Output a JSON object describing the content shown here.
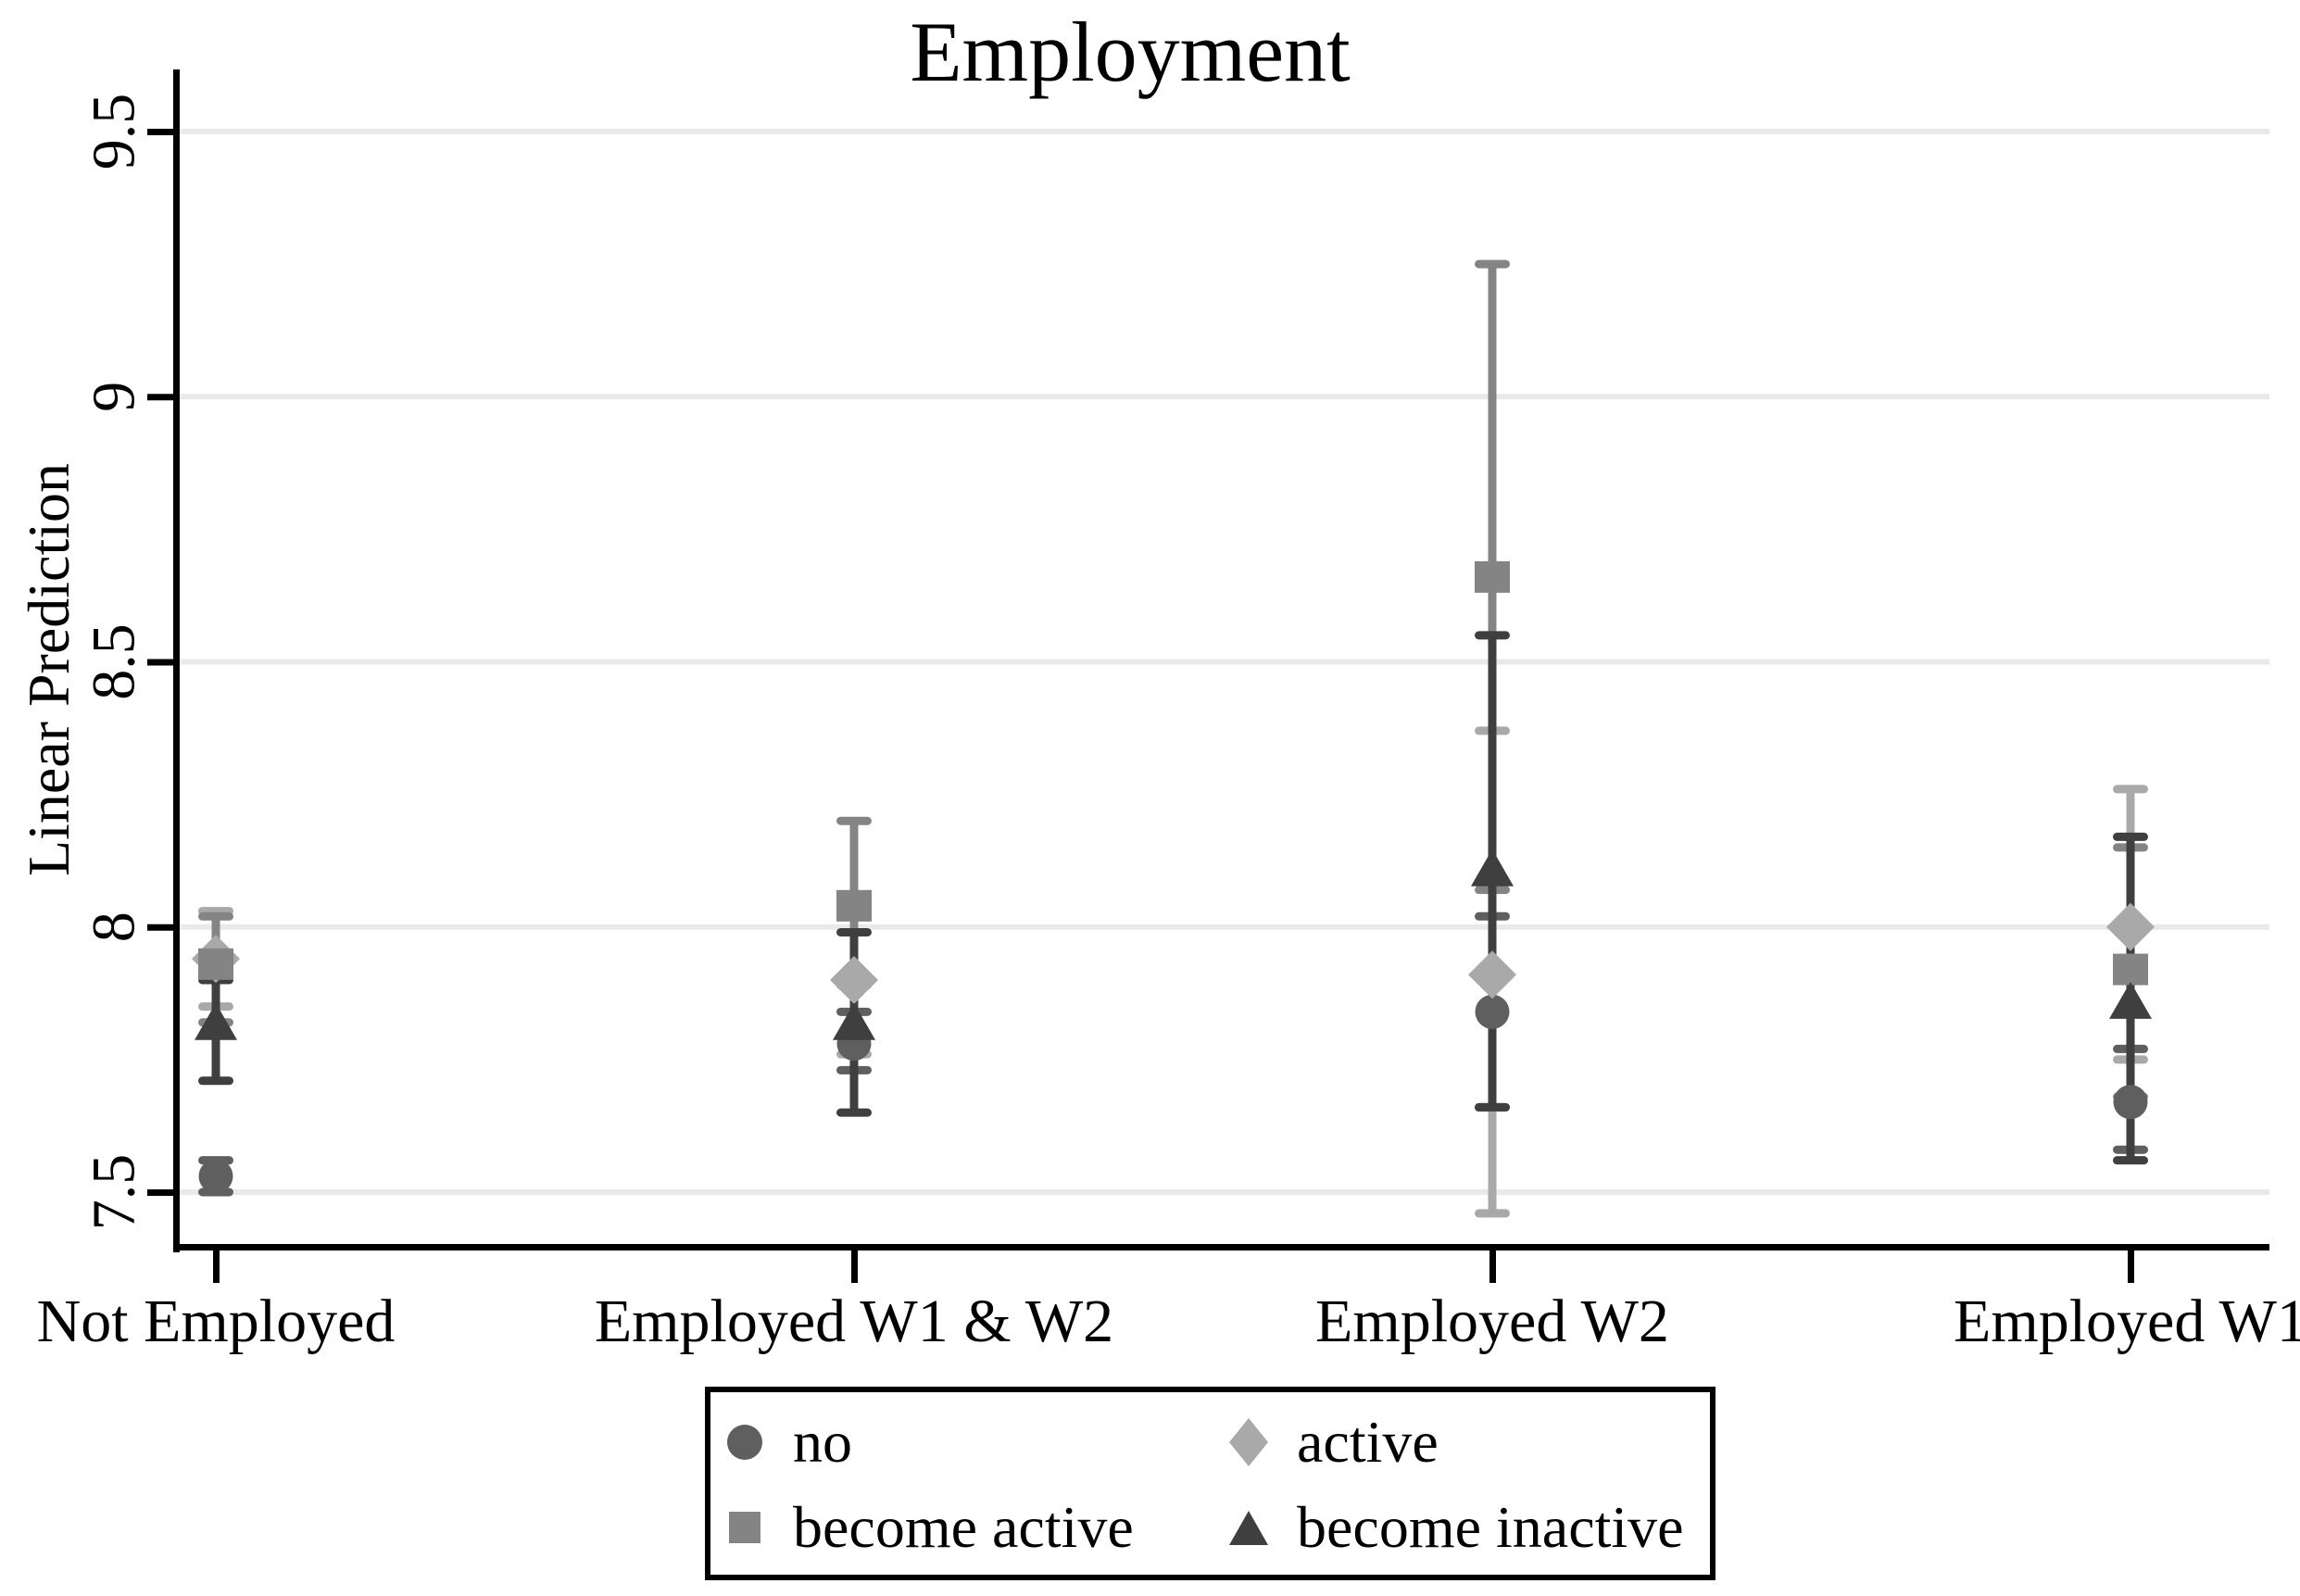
{
  "chart": {
    "title": "Employment",
    "y_axis": {
      "label": "Linear Prediction",
      "tick_labels": [
        "7.5",
        "8",
        "8.5",
        "9",
        "9.5"
      ],
      "tick_values": [
        7.5,
        8,
        8.5,
        9,
        9.5
      ]
    },
    "x_axis": {
      "tick_labels": [
        "Not Employed",
        "Employed W1 & W2",
        "Employed W2",
        "Employed W1"
      ]
    },
    "colors": {
      "axis": "#000000",
      "grid": "#e9e9e9",
      "background": "#ffffff"
    }
  },
  "chart_data": {
    "type": "scatter",
    "title": "Employment",
    "xlabel": "",
    "ylabel": "Linear Prediction",
    "categories": [
      "Not Employed",
      "Employed W1 & W2",
      "Employed W2",
      "Employed W1"
    ],
    "ylim": [
      7.4,
      9.62
    ],
    "yticks": [
      7.5,
      8,
      8.5,
      9,
      9.5
    ],
    "grid": true,
    "legend_position": "bottom-center",
    "error_bars": "capped confidence intervals",
    "series": [
      {
        "name": "no",
        "marker": "circle",
        "color": "#5f5f5f",
        "values": [
          7.53,
          7.78,
          7.84,
          7.67
        ],
        "ci_low": [
          7.5,
          7.73,
          7.66,
          7.58
        ],
        "ci_high": [
          7.56,
          7.84,
          8.02,
          7.77
        ]
      },
      {
        "name": "active",
        "marker": "diamond",
        "color": "#a9a9a9",
        "values": [
          7.94,
          7.9,
          7.91,
          8.0
        ],
        "ci_low": [
          7.85,
          7.76,
          7.46,
          7.75
        ],
        "ci_high": [
          8.03,
          8.04,
          8.37,
          8.26
        ]
      },
      {
        "name": "become active",
        "marker": "square",
        "color": "#848484",
        "values": [
          7.93,
          8.04,
          8.66,
          7.92
        ],
        "ci_low": [
          7.82,
          7.89,
          8.07,
          7.68
        ],
        "ci_high": [
          8.02,
          8.2,
          9.25,
          8.15
        ]
      },
      {
        "name": "become inactive",
        "marker": "triangle",
        "color": "#3f3f3f",
        "values": [
          7.82,
          7.82,
          8.11,
          7.86
        ],
        "ci_low": [
          7.71,
          7.65,
          7.66,
          7.56
        ],
        "ci_high": [
          7.9,
          7.99,
          8.55,
          8.17
        ]
      }
    ]
  }
}
